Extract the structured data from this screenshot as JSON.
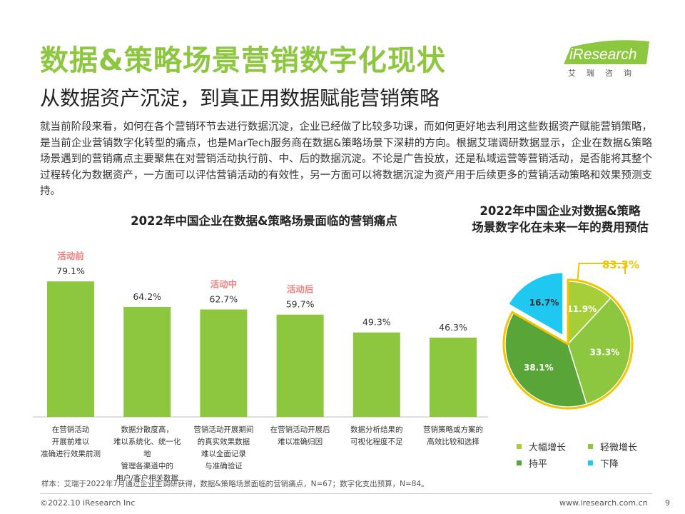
{
  "header": {
    "title": "数据&策略场景营销数字化现状",
    "subtitle": "从数据资产沉淀，到真正用数据赋能营销策略",
    "intro": "就当前阶段来看，如何在各个营销环节去进行数据沉淀，企业已经做了比较多功课，而如何更好地去利用这些数据资产赋能营销策略，是当前企业营销数字化转型的痛点，也是MarTech服务商在数据&策略场景下深耕的方向。根据艾瑞调研数据显示，企业在数据&策略场景遇到的营销痛点主要聚焦在对营销活动执行前、中、后的数据沉淀。不论是广告投放，还是私域运营等营销活动，是否能将其整个过程转化为数据资产，一方面可以评估营销活动的有效性，另一方面可以将数据沉淀为资产用于后续更多的营销活动策略和效果预测支持。"
  },
  "logo": {
    "text": "iResearch",
    "cn": "艾瑞咨询"
  },
  "colors": {
    "brand_green": "#8dc63f",
    "light_green": "#a6ce39",
    "mid_green": "#8dc63f",
    "dark_green": "#5aa538",
    "cyan": "#1ec8f0",
    "highlight_pink": "#f08080",
    "outline_yellow": "#f2c500"
  },
  "chart_data": [
    {
      "type": "bar",
      "title": "2022年中国企业在数据&策略场景面临的营销痛点",
      "categories": [
        "在营销活动\n开展前难以\n准确进行效果前测",
        "数据分散度高，\n难以系统化、统一化地\n管理各渠道中的\n用户/客户相关数据",
        "营销活动开展期间\n的真实效果数据\n难以全面记录\n与准确验证",
        "在营销活动开展后\n难以准确归因",
        "数据分析结果的\n可视化程度不足",
        "营销策略或方案的\n高效比较和选择"
      ],
      "values": [
        79.1,
        64.2,
        62.7,
        59.7,
        49.3,
        46.3
      ],
      "value_labels": [
        "79.1%",
        "64.2%",
        "62.7%",
        "59.7%",
        "49.3%",
        "46.3%"
      ],
      "annotations": [
        {
          "category_index": 0,
          "text": "活动前"
        },
        {
          "category_index": 2,
          "text": "活动中"
        },
        {
          "category_index": 3,
          "text": "活动后"
        }
      ],
      "ylim": [
        0,
        100
      ],
      "color": "#8dc63f"
    },
    {
      "type": "pie",
      "title": "2022年中国企业对数据&策略场景数字化在未来一年的费用预估",
      "title_lines": [
        "2022年中国企业对数据&策略",
        "场景数字化在未来一年的费用预估"
      ],
      "slices": [
        {
          "label": "大幅增长",
          "value": 11.9,
          "display": "11.9%",
          "color": "#a6ce39"
        },
        {
          "label": "轻微增长",
          "value": 33.3,
          "display": "33.3%",
          "color": "#8dc63f"
        },
        {
          "label": "持平",
          "value": 38.1,
          "display": "38.1%",
          "color": "#5aa538"
        },
        {
          "label": "下降",
          "value": 16.7,
          "display": "16.7%",
          "color": "#1ec8f0"
        }
      ],
      "exploded_label": "下降",
      "highlight_total": "83.3%",
      "highlight_total_of": [
        "大幅增长",
        "轻微增长",
        "持平"
      ],
      "legend_position": "bottom"
    }
  ],
  "note": "样本：艾瑞于2022年7月通过企业主调研获得，数据&策略场景面临的营销痛点，N=67；数字化支出预算，N=84。",
  "footer": {
    "copyright": "©2022.10 iResearch Inc",
    "website": "www.iresearch.com.cn",
    "page": "9"
  }
}
